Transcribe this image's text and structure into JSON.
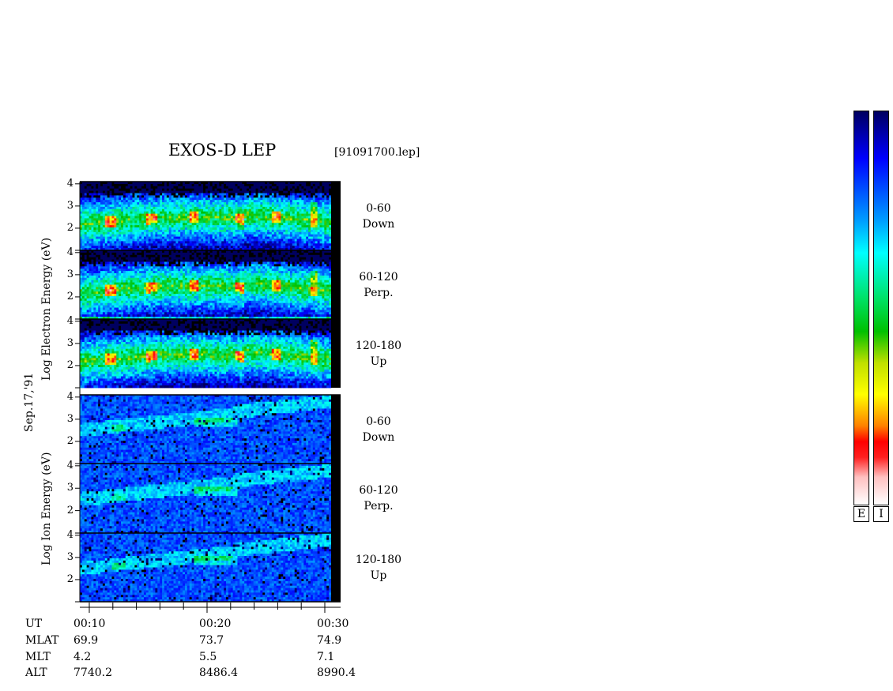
{
  "chart_data": {
    "type": "heatmap",
    "title": "EXOS-D LEP",
    "file": "[91091700.lep]",
    "date": "Sep.17,'91",
    "groups": [
      {
        "ylabel": "Log  Electron  Energy (eV)",
        "panels": [
          {
            "label": "0-60\nDown"
          },
          {
            "label": "60-120\nPerp."
          },
          {
            "label": "120-180\nUp"
          }
        ]
      },
      {
        "ylabel": "Log  Ion  Energy (eV)",
        "panels": [
          {
            "label": "0-60\nDown"
          },
          {
            "label": "60-120\nPerp."
          },
          {
            "label": "120-180\nUp"
          }
        ]
      }
    ],
    "y_ticks": [
      "4",
      "3",
      "2"
    ],
    "ylim": [
      1,
      4.1
    ],
    "x_ticks": [
      "00:10",
      "00:20",
      "00:30"
    ],
    "footer": {
      "rows": [
        {
          "name": "UT",
          "values": [
            "00:10",
            "00:20",
            "00:30"
          ]
        },
        {
          "name": "MLAT",
          "values": [
            "69.9",
            "73.7",
            "74.9"
          ]
        },
        {
          "name": "MLT",
          "values": [
            "4.2",
            "5.5",
            "7.1"
          ]
        },
        {
          "name": "ALT",
          "values": [
            "7740.2",
            "8486.4",
            "8990.4"
          ]
        }
      ]
    },
    "colorbars": [
      {
        "label": "E"
      },
      {
        "label": "I"
      }
    ],
    "colorscale": [
      "#000060",
      "#0000ff",
      "#00a0ff",
      "#00ffff",
      "#00e060",
      "#00c000",
      "#c0e000",
      "#ffff00",
      "#ff8000",
      "#ff0000",
      "#ffc0c0",
      "#ffffff"
    ]
  }
}
